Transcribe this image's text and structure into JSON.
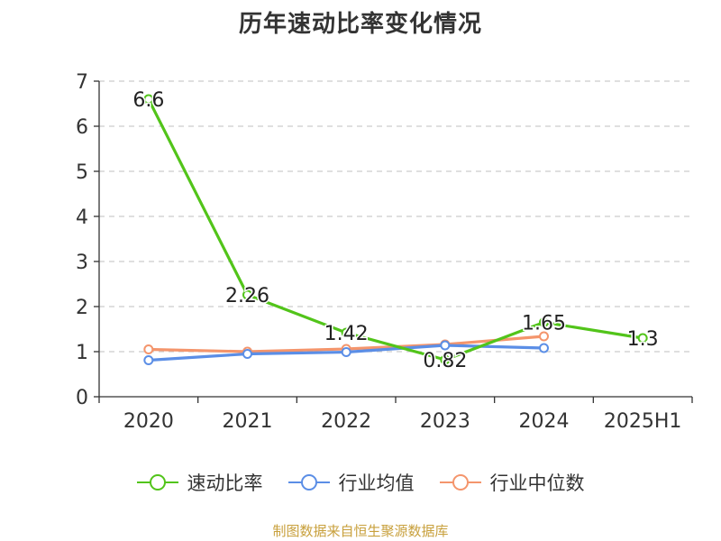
{
  "title": "历年速动比率变化情况",
  "source": "制图数据来自恒生聚源数据库",
  "colors": {
    "grid": "#cccccc",
    "axis": "#333333"
  },
  "chart_data": {
    "type": "line",
    "categories": [
      "2020",
      "2021",
      "2022",
      "2023",
      "2024",
      "2025H1"
    ],
    "ylim": [
      0,
      7
    ],
    "yticks": [
      0,
      1,
      2,
      3,
      4,
      5,
      6,
      7
    ],
    "grid": "horizontal dashed",
    "legend_position": "bottom",
    "series": [
      {
        "name": "速动比率",
        "color": "#52c41a",
        "values": [
          6.6,
          2.26,
          1.42,
          0.82,
          1.65,
          1.3
        ],
        "labels": [
          "6.6",
          "2.26",
          "1.42",
          "0.82",
          "1.65",
          "1.3"
        ]
      },
      {
        "name": "行业均值",
        "color": "#5b8ee6",
        "values": [
          0.81,
          0.95,
          0.99,
          1.14,
          1.08,
          null
        ]
      },
      {
        "name": "行业中位数",
        "color": "#f4956c",
        "values": [
          1.05,
          1.0,
          1.06,
          1.16,
          1.34,
          null
        ]
      }
    ]
  }
}
